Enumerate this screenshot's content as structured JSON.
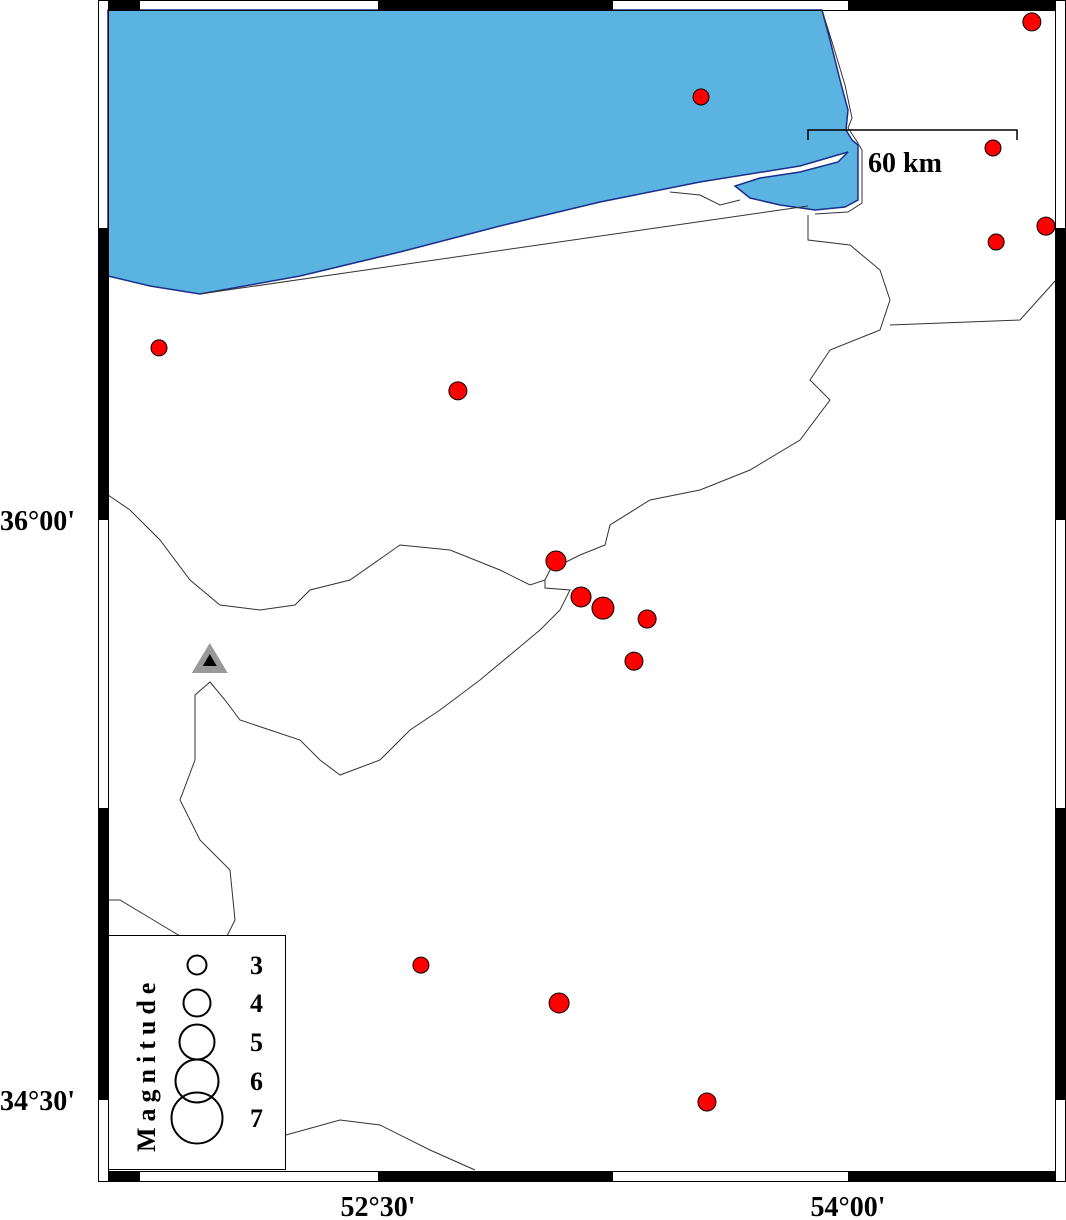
{
  "map": {
    "colors": {
      "sea": "#5ab3e0",
      "coast": "#1a2f8a",
      "event": "#ff0000",
      "station": "#999999"
    },
    "lat_labels": [
      {
        "value": 36.0,
        "text": "36°00'"
      },
      {
        "value": 34.5,
        "text": "34°30'"
      }
    ],
    "lon_labels": [
      {
        "value": 52.5,
        "text": "52°30'"
      },
      {
        "value": 54.0,
        "text": "54°00'"
      }
    ],
    "scale_bar": {
      "label": "60 km"
    },
    "station": {
      "lon": 51.963,
      "lat": 35.638,
      "icon": "triangle-icon"
    },
    "events": [
      {
        "lon": 54.587,
        "lat": 37.288,
        "mag": 2.75
      },
      {
        "lon": 53.531,
        "lat": 37.094,
        "mag": 2.5
      },
      {
        "lon": 54.463,
        "lat": 36.962,
        "mag": 2.5
      },
      {
        "lon": 54.632,
        "lat": 36.76,
        "mag": 2.75
      },
      {
        "lon": 54.473,
        "lat": 36.719,
        "mag": 2.5
      },
      {
        "lon": 51.801,
        "lat": 36.445,
        "mag": 2.5
      },
      {
        "lon": 52.755,
        "lat": 36.334,
        "mag": 2.75
      },
      {
        "lon": 53.068,
        "lat": 35.894,
        "mag": 3.0
      },
      {
        "lon": 53.148,
        "lat": 35.801,
        "mag": 3.0
      },
      {
        "lon": 53.218,
        "lat": 35.772,
        "mag": 3.25
      },
      {
        "lon": 53.359,
        "lat": 35.744,
        "mag": 2.75
      },
      {
        "lon": 53.317,
        "lat": 35.635,
        "mag": 2.75
      },
      {
        "lon": 52.637,
        "lat": 34.849,
        "mag": 2.5
      },
      {
        "lon": 53.078,
        "lat": 34.751,
        "mag": 3.0
      },
      {
        "lon": 53.55,
        "lat": 34.495,
        "mag": 2.75
      }
    ]
  },
  "legend": {
    "title": "Magnitude",
    "items": [
      {
        "mag": 3,
        "label": "3"
      },
      {
        "mag": 4,
        "label": "4"
      },
      {
        "mag": 5,
        "label": "5"
      },
      {
        "mag": 6,
        "label": "6"
      },
      {
        "mag": 7,
        "label": "7"
      }
    ]
  }
}
